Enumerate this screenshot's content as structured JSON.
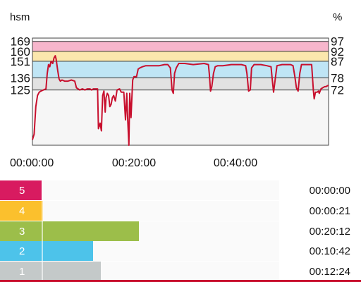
{
  "chart_data": {
    "type": "line",
    "left_axis_title": "hsm",
    "right_axis_title": "%",
    "left_ticks": [
      "169",
      "160",
      "151",
      "136",
      "125"
    ],
    "right_ticks": [
      "97",
      "92",
      "87",
      "78",
      "72"
    ],
    "left_tick_values": [
      169,
      160,
      151,
      136,
      125
    ],
    "y_range": [
      75,
      172
    ],
    "x_range_seconds": [
      0,
      3500
    ],
    "x_tick_labels": [
      "00:00:00",
      "00:20:00",
      "00:40:00"
    ],
    "x_tick_seconds": [
      0,
      1200,
      2400
    ],
    "series_color": "#c8102e",
    "zones": [
      {
        "from": 160,
        "to": 169,
        "color": "#f7b6cc"
      },
      {
        "from": 151,
        "to": 160,
        "color": "#fbe7ad"
      },
      {
        "from": 136,
        "to": 151,
        "color": "#bfe5f5"
      },
      {
        "from": 125,
        "to": 136,
        "color": "#e2e2e2"
      }
    ],
    "series": [
      {
        "values": [
          [
            0,
            80
          ],
          [
            20,
            85
          ],
          [
            40,
            110
          ],
          [
            60,
            120
          ],
          [
            80,
            123
          ],
          [
            100,
            124
          ],
          [
            130,
            125
          ],
          [
            160,
            126
          ],
          [
            175,
            140
          ],
          [
            190,
            148
          ],
          [
            205,
            146
          ],
          [
            220,
            151
          ],
          [
            240,
            149
          ],
          [
            255,
            154
          ],
          [
            270,
            156
          ],
          [
            280,
            153
          ],
          [
            300,
            142
          ],
          [
            315,
            135
          ],
          [
            330,
            133
          ],
          [
            350,
            134
          ],
          [
            380,
            133
          ],
          [
            420,
            133
          ],
          [
            460,
            134
          ],
          [
            500,
            133
          ],
          [
            520,
            127
          ],
          [
            540,
            126
          ],
          [
            560,
            125
          ],
          [
            590,
            126
          ],
          [
            620,
            125
          ],
          [
            650,
            126
          ],
          [
            680,
            126
          ],
          [
            700,
            125
          ],
          [
            720,
            126
          ],
          [
            770,
            126
          ],
          [
            780,
            90
          ],
          [
            800,
            95
          ],
          [
            815,
            88
          ],
          [
            830,
            120
          ],
          [
            845,
            124
          ],
          [
            860,
            105
          ],
          [
            870,
            118
          ],
          [
            885,
            122
          ],
          [
            900,
            120
          ],
          [
            915,
            110
          ],
          [
            930,
            112
          ],
          [
            945,
            118
          ],
          [
            960,
            120
          ],
          [
            980,
            115
          ],
          [
            1000,
            125
          ],
          [
            1030,
            126
          ],
          [
            1050,
            123
          ],
          [
            1080,
            123
          ],
          [
            1100,
            98
          ],
          [
            1115,
            122
          ],
          [
            1125,
            100
          ],
          [
            1140,
            75
          ],
          [
            1150,
            122
          ],
          [
            1165,
            100
          ],
          [
            1185,
            134
          ],
          [
            1200,
            137
          ],
          [
            1230,
            137
          ],
          [
            1250,
            144
          ],
          [
            1270,
            145
          ],
          [
            1300,
            146
          ],
          [
            1340,
            147
          ],
          [
            1400,
            147
          ],
          [
            1500,
            147
          ],
          [
            1560,
            148
          ],
          [
            1600,
            148
          ],
          [
            1630,
            145
          ],
          [
            1650,
            125
          ],
          [
            1665,
            122
          ],
          [
            1680,
            140
          ],
          [
            1700,
            145
          ],
          [
            1730,
            149
          ],
          [
            1800,
            149
          ],
          [
            1900,
            148
          ],
          [
            2030,
            149
          ],
          [
            2080,
            148
          ],
          [
            2090,
            140
          ],
          [
            2105,
            124
          ],
          [
            2120,
            128
          ],
          [
            2140,
            140
          ],
          [
            2160,
            146
          ],
          [
            2190,
            147
          ],
          [
            2250,
            147
          ],
          [
            2350,
            148
          ],
          [
            2470,
            148
          ],
          [
            2520,
            147
          ],
          [
            2535,
            140
          ],
          [
            2555,
            124
          ],
          [
            2575,
            125
          ],
          [
            2590,
            145
          ],
          [
            2620,
            148
          ],
          [
            2700,
            148
          ],
          [
            2770,
            147
          ],
          [
            2820,
            146
          ],
          [
            2835,
            134
          ],
          [
            2850,
            123
          ],
          [
            2870,
            135
          ],
          [
            2890,
            147
          ],
          [
            2950,
            148
          ],
          [
            3000,
            148
          ],
          [
            3050,
            148
          ],
          [
            3080,
            147
          ],
          [
            3100,
            138
          ],
          [
            3120,
            127
          ],
          [
            3140,
            124
          ],
          [
            3160,
            140
          ],
          [
            3180,
            148
          ],
          [
            3250,
            148
          ],
          [
            3300,
            148
          ],
          [
            3320,
            125
          ],
          [
            3330,
            117
          ],
          [
            3345,
            123
          ],
          [
            3365,
            123
          ],
          [
            3380,
            124
          ],
          [
            3390,
            122
          ],
          [
            3410,
            126
          ],
          [
            3430,
            127
          ],
          [
            3455,
            128
          ],
          [
            3470,
            128
          ],
          [
            3490,
            129
          ],
          [
            3500,
            129
          ]
        ]
      }
    ]
  },
  "zone_summary": [
    {
      "label": "5",
      "time": "00:00:00",
      "fraction": 0.0,
      "color": "#d81b60"
    },
    {
      "label": "4",
      "time": "00:00:21",
      "fraction": 0.005,
      "color": "#fbc02d"
    },
    {
      "label": "3",
      "time": "00:20:12",
      "fraction": 0.354,
      "color": "#9cbe4a"
    },
    {
      "label": "2",
      "time": "00:10:42",
      "fraction": 0.188,
      "color": "#4dc3ea"
    },
    {
      "label": "1",
      "time": "00:12:24",
      "fraction": 0.215,
      "color": "#c4c9c9"
    }
  ],
  "accent_color": "#c8102e"
}
